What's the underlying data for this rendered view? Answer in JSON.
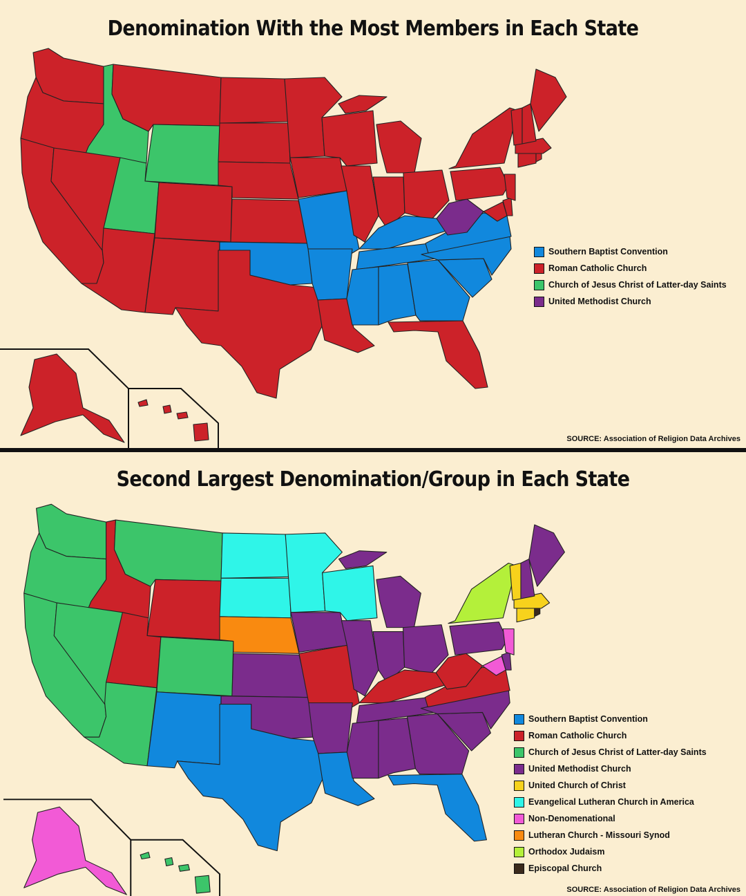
{
  "top": {
    "title": "Denomination With the Most Members in Each State",
    "source": "SOURCE: Association of Religion Data Archives",
    "legend": [
      {
        "label": "Southern Baptist Convention",
        "color": "#1188dd"
      },
      {
        "label": "Roman Catholic Church",
        "color": "#cc2229"
      },
      {
        "label": "Church of Jesus Christ of Latter-day Saints",
        "color": "#3cc56a"
      },
      {
        "label": "United Methodist Church",
        "color": "#7b2c8c"
      }
    ]
  },
  "bottom": {
    "title": "Second Largest Denomination/Group in Each State",
    "source": "SOURCE: Association of Religion Data Archives",
    "legend": [
      {
        "label": "Southern Baptist Convention",
        "color": "#1188dd"
      },
      {
        "label": "Roman Catholic Church",
        "color": "#cc2229"
      },
      {
        "label": "Church of Jesus Christ of Latter-day Saints",
        "color": "#3cc56a"
      },
      {
        "label": "United Methodist Church",
        "color": "#7b2c8c"
      },
      {
        "label": "United Church of Christ",
        "color": "#f7d21c"
      },
      {
        "label": "Evangelical Lutheran Church in America",
        "color": "#2ff5e8"
      },
      {
        "label": "Non-Denomenational",
        "color": "#f25ad6"
      },
      {
        "label": "Lutheran Church - Missouri Synod",
        "color": "#f98a10"
      },
      {
        "label": "Orthodox Judaism",
        "color": "#b4f03a"
      },
      {
        "label": "Episcopal Church",
        "color": "#3b2a1c"
      }
    ]
  }
}
